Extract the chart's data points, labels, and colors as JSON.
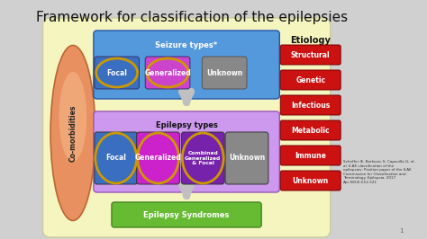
{
  "title": "Framework for classification of the epilepsies",
  "title_fontsize": 11,
  "title_color": "#111111",
  "page_bg": "#d0d0d0",
  "main_rect_color": "#f5f5c0",
  "main_rect_edge": "#cccc99",
  "comorbidities_color_top": "#f0b080",
  "comorbidities_color_bot": "#e07848",
  "comorbidities_text": "Co-morbidities",
  "etiology_label": "Etiology",
  "etiology_boxes": [
    "Structural",
    "Genetic",
    "Infectious",
    "Metabolic",
    "Immune",
    "Unknown"
  ],
  "etiology_color": "#cc1111",
  "seizure_box_color": "#5599dd",
  "seizure_box_label": "Seizure types*",
  "seizure_items": [
    "Focal",
    "Generalized",
    "Unknown"
  ],
  "seizure_item_colors": [
    "#3a6ec0",
    "#cc44cc",
    "#888888"
  ],
  "epilepsy_box_color": "#cc99ee",
  "epilepsy_box_label": "Epilepsy types",
  "epilepsy_items": [
    "Focal",
    "Generalized",
    "Combined\nGeneralized\n& Focal",
    "Unknown"
  ],
  "epilepsy_item_colors": [
    "#3a6ec0",
    "#cc22cc",
    "#7722aa",
    "#888888"
  ],
  "syndrome_box_color": "#66bb33",
  "syndrome_label": "Epilepsy Syndromes",
  "reference_text": "Scheffer IE, Berkovic S, Capovilla G, et\nal. ILAE classification of the\nepilepsies: Position paper of the ILAE\nCommission for Classification and\nTerminology. Epilepsia. 2017\nApr;58(4):512-521",
  "arrow_color": "#c0c0c0",
  "gold_ring_color": "#cc9900"
}
